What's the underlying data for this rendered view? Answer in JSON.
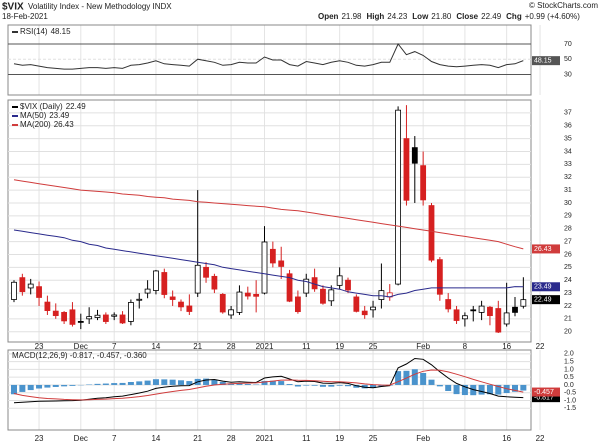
{
  "header": {
    "symbol": "$VIX",
    "name": "Volatility Index - New Methodology INDX",
    "date": "18-Feb-2021",
    "source": "© StockCharts.com",
    "quote": [
      {
        "label": "Open",
        "value": "21.98"
      },
      {
        "label": "High",
        "value": "24.23"
      },
      {
        "label": "Low",
        "value": "21.80"
      },
      {
        "label": "Close",
        "value": "22.49"
      },
      {
        "label": "Chg",
        "value": "+0.99 (+4.60%)"
      }
    ]
  },
  "chart_data": [
    {
      "type": "line",
      "ylim": [
        3,
        95
      ],
      "yticks": [
        30,
        50,
        70
      ],
      "grid": true,
      "series": [
        {
          "name": "RSI(14)",
          "color": "#333333",
          "values": [
            44,
            42,
            43,
            41,
            39,
            38,
            37,
            37,
            38,
            39,
            39,
            38,
            39,
            38,
            42,
            43,
            45,
            48,
            44,
            43,
            42,
            41,
            50,
            48,
            46,
            42,
            43,
            46,
            45,
            45,
            53,
            49,
            49,
            43,
            41,
            47,
            45,
            43,
            46,
            48,
            46,
            42,
            41,
            43,
            46,
            46,
            70,
            56,
            60,
            55,
            47,
            43,
            41,
            40,
            41,
            42,
            43,
            42,
            39,
            43,
            44,
            48.15,
            null,
            null
          ]
        }
      ]
    },
    {
      "type": "candlestick",
      "ylim": [
        19.2,
        38
      ],
      "yticks": [
        20,
        21,
        22,
        23,
        24,
        25,
        26,
        27,
        28,
        29,
        30,
        31,
        32,
        33,
        34,
        35,
        36,
        37
      ],
      "grid": true,
      "categories": [
        null,
        null,
        null,
        "23",
        null,
        null,
        null,
        null,
        "Dec",
        null,
        null,
        null,
        "7",
        null,
        null,
        null,
        null,
        "14",
        null,
        null,
        null,
        null,
        "21",
        null,
        null,
        null,
        "28",
        null,
        null,
        null,
        "2021",
        null,
        null,
        null,
        null,
        "11",
        null,
        null,
        null,
        "19",
        null,
        null,
        null,
        "25",
        null,
        null,
        null,
        null,
        null,
        "Feb",
        null,
        null,
        null,
        null,
        "8",
        null,
        null,
        null,
        null,
        "16",
        null,
        null,
        null,
        "22"
      ],
      "series": [
        {
          "name": "$VIX (Daily)",
          "color": "#000000",
          "up_color": "#000000",
          "down_color": "#d62020",
          "open": [
            22.5,
            24.2,
            23.4,
            23.5,
            22.3,
            21.6,
            21.5,
            21.7,
            20.8,
            21.0,
            21.1,
            21.3,
            21.2,
            21.3,
            20.8,
            22.5,
            23.0,
            23.2,
            24.6,
            22.7,
            22.3,
            22.0,
            23.0,
            25.0,
            24.3,
            22.9,
            21.3,
            21.5,
            23.0,
            22.9,
            23.0,
            26.4,
            25.5,
            24.5,
            22.7,
            23.0,
            24.2,
            23.3,
            22.4,
            23.6,
            24.0,
            22.7,
            21.6,
            21.7,
            22.5,
            22.7,
            23.7,
            35.0,
            34.3,
            32.9,
            29.8,
            25.6,
            22.5,
            21.7,
            21.0,
            21.7,
            21.5,
            21.9,
            21.8,
            20.6,
            21.9,
            21.98,
            null,
            null
          ],
          "high": [
            24.0,
            24.5,
            24.1,
            23.9,
            22.8,
            22.2,
            21.6,
            22.3,
            21.4,
            21.9,
            21.7,
            21.5,
            21.5,
            21.6,
            22.5,
            23.0,
            24.0,
            24.8,
            24.9,
            23.2,
            22.5,
            22.9,
            31.0,
            25.4,
            24.5,
            23.0,
            22.0,
            23.6,
            23.5,
            24.0,
            28.2,
            27.0,
            26.6,
            24.8,
            23.2,
            24.5,
            24.9,
            23.6,
            23.6,
            25.0,
            24.2,
            22.9,
            22.0,
            22.4,
            25.3,
            23.7,
            37.5,
            37.6,
            35.2,
            34.0,
            30.0,
            25.8,
            23.0,
            22.0,
            21.5,
            22.0,
            22.4,
            22.0,
            22.4,
            23.8,
            22.7,
            24.23,
            null,
            null
          ],
          "low": [
            22.3,
            22.8,
            22.9,
            22.0,
            21.3,
            21.0,
            20.6,
            20.4,
            20.2,
            20.6,
            20.9,
            20.6,
            20.9,
            20.6,
            20.5,
            21.8,
            22.6,
            22.9,
            22.6,
            22.0,
            21.6,
            21.3,
            22.7,
            23.8,
            23.0,
            21.4,
            21.0,
            21.3,
            22.5,
            21.5,
            22.9,
            25.0,
            24.1,
            22.3,
            21.4,
            22.7,
            23.1,
            22.1,
            22.0,
            23.3,
            23.0,
            21.5,
            21.0,
            21.1,
            21.8,
            22.4,
            23.6,
            29.8,
            30.0,
            29.8,
            25.4,
            22.4,
            21.5,
            20.6,
            20.4,
            20.8,
            20.9,
            20.5,
            19.9,
            20.4,
            21.2,
            21.8,
            null,
            null
          ],
          "close": [
            23.84,
            23.11,
            23.7,
            22.66,
            21.64,
            21.25,
            20.84,
            20.57,
            20.77,
            21.17,
            21.28,
            20.79,
            21.3,
            20.68,
            22.27,
            22.52,
            23.31,
            24.72,
            22.89,
            22.5,
            21.93,
            21.57,
            25.16,
            24.23,
            23.31,
            21.53,
            21.7,
            23.08,
            22.77,
            22.75,
            26.97,
            25.34,
            25.07,
            22.37,
            21.56,
            24.08,
            23.33,
            22.21,
            23.25,
            24.34,
            23.24,
            21.58,
            21.32,
            21.91,
            23.19,
            23.02,
            37.21,
            30.21,
            33.09,
            30.24,
            25.56,
            22.91,
            21.77,
            20.87,
            21.24,
            21.63,
            21.99,
            21.25,
            19.97,
            21.46,
            21.5,
            22.49,
            null,
            null
          ]
        },
        {
          "name": "MA(50)",
          "color": "#2a2a8c",
          "values": [
            27.9,
            27.8,
            27.7,
            27.6,
            27.5,
            27.4,
            27.3,
            27.1,
            27.0,
            26.8,
            26.7,
            26.5,
            26.4,
            26.3,
            26.2,
            26.1,
            26.0,
            25.9,
            25.8,
            25.7,
            25.6,
            25.5,
            25.4,
            25.3,
            25.2,
            25.0,
            24.9,
            24.8,
            24.7,
            24.6,
            24.5,
            24.4,
            24.3,
            24.2,
            24.0,
            23.9,
            23.7,
            23.5,
            23.4,
            23.3,
            23.1,
            23.0,
            22.9,
            22.8,
            22.8,
            22.7,
            22.9,
            23.0,
            23.2,
            23.3,
            23.4,
            23.4,
            23.4,
            23.4,
            23.4,
            23.4,
            23.4,
            23.4,
            23.4,
            23.4,
            23.5,
            23.49,
            null,
            null
          ]
        },
        {
          "name": "MA(200)",
          "color": "#d03c3c",
          "values": [
            31.8,
            31.7,
            31.6,
            31.5,
            31.4,
            31.3,
            31.2,
            31.1,
            31.0,
            30.95,
            30.9,
            30.85,
            30.8,
            30.7,
            30.65,
            30.6,
            30.5,
            30.45,
            30.4,
            30.3,
            30.25,
            30.2,
            30.1,
            30.05,
            30.0,
            29.95,
            29.9,
            29.85,
            29.8,
            29.75,
            29.7,
            29.6,
            29.5,
            29.45,
            29.4,
            29.3,
            29.2,
            29.1,
            29.0,
            28.9,
            28.8,
            28.7,
            28.6,
            28.5,
            28.4,
            28.3,
            28.2,
            28.1,
            28.0,
            27.9,
            27.8,
            27.7,
            27.6,
            27.5,
            27.4,
            27.3,
            27.2,
            27.1,
            27.0,
            26.8,
            26.6,
            26.43,
            null,
            null
          ]
        }
      ]
    },
    {
      "type": "macd",
      "legend": "MACD(12,26,9) -0.817, -0.457, -0.360",
      "ylim": [
        -2.9,
        2.25
      ],
      "yticks": [
        {
          "value": 2,
          "label": "2.0"
        },
        1.5,
        {
          "value": 1,
          "label": "1.0"
        },
        0.5,
        {
          "value": 0,
          "label": "0.0"
        },
        -0.5,
        {
          "value": -1,
          "label": "-1.0"
        },
        -1.5
      ],
      "grid": true,
      "series": [
        {
          "name": "MACD",
          "color": "#000000",
          "values": [
            -1.15,
            -1.12,
            -1.08,
            -1.05,
            -1.04,
            -1.03,
            -1.02,
            -1.01,
            -0.98,
            -0.92,
            -0.86,
            -0.82,
            -0.76,
            -0.72,
            -0.62,
            -0.52,
            -0.4,
            -0.22,
            -0.14,
            -0.08,
            -0.05,
            -0.04,
            0.2,
            0.32,
            0.35,
            0.25,
            0.18,
            0.2,
            0.18,
            0.16,
            0.45,
            0.52,
            0.56,
            0.38,
            0.2,
            0.25,
            0.22,
            0.12,
            0.1,
            0.15,
            0.1,
            -0.05,
            -0.15,
            -0.18,
            -0.1,
            -0.05,
            1.1,
            1.35,
            1.7,
            1.65,
            1.3,
            0.85,
            0.45,
            0.1,
            -0.12,
            -0.3,
            -0.42,
            -0.55,
            -0.72,
            -0.76,
            -0.79,
            -0.817,
            null,
            null
          ]
        },
        {
          "name": "Signal",
          "color": "#d03c3c",
          "values": [
            -0.55,
            -0.67,
            -0.75,
            -0.82,
            -0.87,
            -0.9,
            -0.93,
            -0.95,
            -0.96,
            -0.95,
            -0.93,
            -0.91,
            -0.88,
            -0.85,
            -0.81,
            -0.75,
            -0.68,
            -0.59,
            -0.5,
            -0.42,
            -0.35,
            -0.29,
            -0.19,
            -0.09,
            0.0,
            0.05,
            0.08,
            0.1,
            0.12,
            0.13,
            0.19,
            0.25,
            0.31,
            0.32,
            0.3,
            0.29,
            0.27,
            0.24,
            0.21,
            0.2,
            0.18,
            0.13,
            0.07,
            0.02,
            0.0,
            -0.01,
            0.21,
            0.44,
            0.69,
            0.88,
            0.96,
            0.94,
            0.84,
            0.69,
            0.53,
            0.36,
            0.2,
            0.05,
            -0.1,
            -0.24,
            -0.35,
            -0.457,
            null,
            null
          ]
        },
        {
          "name": "Histogram",
          "color": "#4a93cc",
          "values": [
            -0.6,
            -0.45,
            -0.33,
            -0.23,
            -0.17,
            -0.13,
            -0.09,
            -0.06,
            -0.02,
            0.03,
            0.07,
            0.09,
            0.12,
            0.13,
            0.19,
            0.23,
            0.28,
            0.37,
            0.36,
            0.34,
            0.3,
            0.25,
            0.39,
            0.41,
            0.35,
            0.2,
            0.1,
            0.1,
            0.06,
            0.03,
            0.26,
            0.27,
            0.25,
            0.06,
            -0.1,
            -0.04,
            -0.05,
            -0.12,
            -0.11,
            -0.05,
            -0.08,
            -0.18,
            -0.22,
            -0.2,
            -0.1,
            -0.04,
            0.89,
            0.91,
            1.01,
            0.77,
            0.34,
            -0.09,
            -0.39,
            -0.59,
            -0.65,
            -0.66,
            -0.62,
            -0.6,
            -0.62,
            -0.52,
            -0.44,
            -0.36,
            null,
            null
          ]
        }
      ]
    }
  ]
}
